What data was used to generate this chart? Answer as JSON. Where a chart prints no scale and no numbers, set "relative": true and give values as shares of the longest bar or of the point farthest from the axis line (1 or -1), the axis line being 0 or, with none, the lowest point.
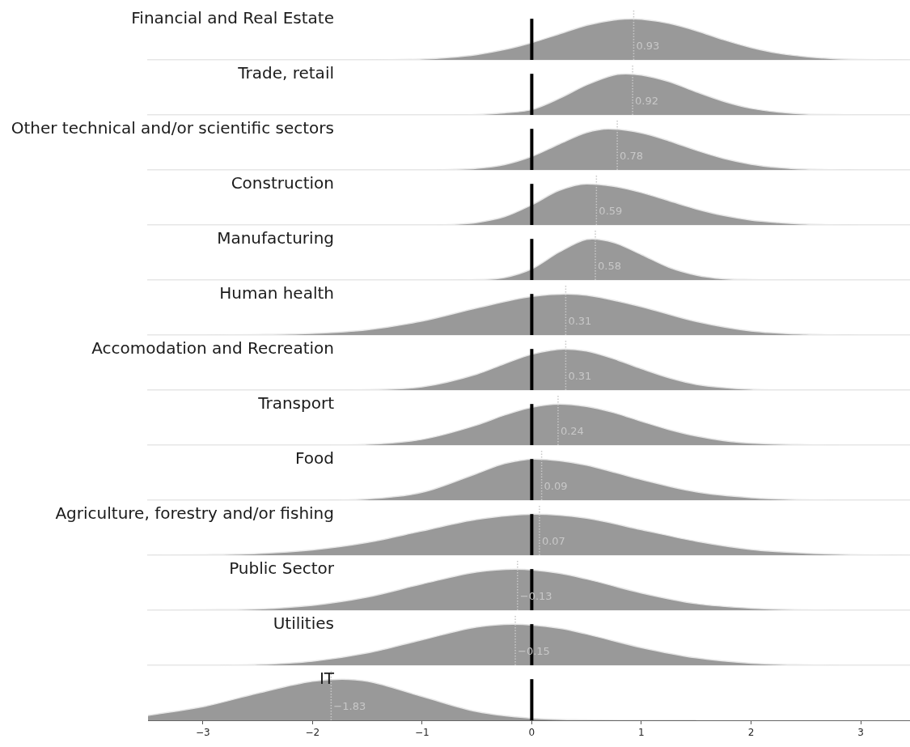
{
  "chart_data": [
    {
      "type": "area",
      "title": "Financial and Real Estate",
      "relative": true,
      "color": "#999999",
      "x": [
        -2.0,
        -1.5,
        -1.0,
        -0.75,
        -0.5,
        -0.25,
        0,
        0.25,
        0.5,
        0.75,
        0.92,
        1.0,
        1.25,
        1.5,
        1.75,
        2.0,
        2.25,
        2.5,
        2.75,
        3.0,
        3.45
      ],
      "values": [
        0,
        0,
        0.02,
        0.06,
        0.13,
        0.25,
        0.42,
        0.63,
        0.84,
        0.97,
        1,
        0.99,
        0.89,
        0.71,
        0.49,
        0.3,
        0.16,
        0.08,
        0.03,
        0.01,
        0
      ],
      "xlim": [
        -3.5,
        3.45
      ],
      "tick_labels": false,
      "ref_lines": [
        {
          "axis": "x",
          "value": 0,
          "color": "#000000"
        },
        {
          "axis": "x",
          "value": 0.93,
          "label": "0.93",
          "line_style": "dotted",
          "color": "#c8c8c8"
        }
      ]
    },
    {
      "type": "area",
      "title": "Trade, retail",
      "relative": true,
      "color": "#999999",
      "x": [
        -0.94,
        -0.5,
        -0.25,
        0,
        0.25,
        0.5,
        0.75,
        0.86,
        1.0,
        1.25,
        1.5,
        1.75,
        2.0,
        2.25,
        2.5,
        2.75,
        3.09
      ],
      "values": [
        0,
        0.01,
        0.05,
        0.13,
        0.4,
        0.73,
        0.97,
        1,
        0.97,
        0.81,
        0.56,
        0.33,
        0.16,
        0.07,
        0.02,
        0.01,
        0
      ],
      "xlim": [
        -3.5,
        3.45
      ],
      "tick_labels": false,
      "ref_lines": [
        {
          "axis": "x",
          "value": 0,
          "color": "#000000"
        },
        {
          "axis": "x",
          "value": 0.92,
          "label": "0.92",
          "line_style": "dotted",
          "color": "#c8c8c8"
        }
      ]
    },
    {
      "type": "area",
      "title": "Other technical and/or scientific sectors",
      "relative": true,
      "color": "#999999",
      "x": [
        -1.67,
        -1.0,
        -0.75,
        -0.5,
        -0.25,
        0,
        0.25,
        0.5,
        0.7,
        1.0,
        1.25,
        1.5,
        1.75,
        2.0,
        2.25,
        2.5,
        3.0,
        3.45
      ],
      "values": [
        0,
        0,
        0.01,
        0.04,
        0.13,
        0.33,
        0.63,
        0.91,
        1,
        0.9,
        0.71,
        0.48,
        0.28,
        0.14,
        0.06,
        0.02,
        0,
        0
      ],
      "xlim": [
        -3.5,
        3.45
      ],
      "tick_labels": false,
      "ref_lines": [
        {
          "axis": "x",
          "value": 0,
          "color": "#000000"
        },
        {
          "axis": "x",
          "value": 0.78,
          "label": "0.78",
          "line_style": "dotted",
          "color": "#c8c8c8"
        }
      ]
    },
    {
      "type": "area",
      "title": "Construction",
      "relative": true,
      "color": "#999999",
      "x": [
        -2.1,
        -1.0,
        -0.75,
        -0.5,
        -0.25,
        0,
        0.25,
        0.5,
        0.75,
        1.0,
        1.25,
        1.5,
        1.75,
        2.0,
        2.25,
        2.5,
        3.0,
        3.23
      ],
      "values": [
        0,
        0,
        0.01,
        0.06,
        0.2,
        0.49,
        0.84,
        1,
        0.94,
        0.79,
        0.59,
        0.39,
        0.23,
        0.12,
        0.06,
        0.02,
        0,
        0
      ],
      "xlim": [
        -3.5,
        3.45
      ],
      "tick_labels": false,
      "ref_lines": [
        {
          "axis": "x",
          "value": 0,
          "color": "#000000"
        },
        {
          "axis": "x",
          "value": 0.59,
          "label": "0.59",
          "line_style": "dotted",
          "color": "#c8c8c8"
        }
      ]
    },
    {
      "type": "area",
      "title": "Manufacturing",
      "relative": true,
      "color": "#999999",
      "x": [
        -0.96,
        -0.5,
        -0.25,
        0,
        0.25,
        0.5,
        0.55,
        0.75,
        1.0,
        1.25,
        1.5,
        1.75,
        2.0,
        2.41
      ],
      "values": [
        0,
        0.01,
        0.06,
        0.27,
        0.68,
        0.99,
        1,
        0.91,
        0.62,
        0.31,
        0.12,
        0.03,
        0.01,
        0
      ],
      "xlim": [
        -3.5,
        3.45
      ],
      "tick_labels": false,
      "ref_lines": [
        {
          "axis": "x",
          "value": 0,
          "color": "#000000"
        },
        {
          "axis": "x",
          "value": 0.58,
          "label": "0.58",
          "line_style": "dotted",
          "color": "#c8c8c8"
        }
      ]
    },
    {
      "type": "area",
      "title": "Human health",
      "relative": true,
      "color": "#999999",
      "x": [
        -3.2,
        -2.5,
        -2.0,
        -1.5,
        -1.0,
        -0.5,
        0,
        0.32,
        0.5,
        1.0,
        1.5,
        2.0,
        2.5,
        3.0,
        3.45
      ],
      "values": [
        0,
        0.01,
        0.04,
        0.13,
        0.34,
        0.66,
        0.94,
        1,
        0.97,
        0.69,
        0.33,
        0.1,
        0.02,
        0,
        0
      ],
      "xlim": [
        -3.5,
        3.45
      ],
      "tick_labels": false,
      "ref_lines": [
        {
          "axis": "x",
          "value": 0,
          "color": "#000000"
        },
        {
          "axis": "x",
          "value": 0.31,
          "label": "0.31",
          "line_style": "dotted",
          "color": "#c8c8c8"
        }
      ]
    },
    {
      "type": "area",
      "title": "Accomodation and Recreation",
      "relative": true,
      "color": "#999999",
      "x": [
        -2.6,
        -2.0,
        -1.5,
        -1.0,
        -0.5,
        -0.25,
        0,
        0.3,
        0.5,
        0.75,
        1.0,
        1.25,
        1.5,
        2.0,
        2.5,
        3.17
      ],
      "values": [
        0,
        0,
        0.01,
        0.08,
        0.39,
        0.64,
        0.87,
        1,
        0.95,
        0.76,
        0.52,
        0.3,
        0.14,
        0.02,
        0,
        0
      ],
      "xlim": [
        -3.5,
        3.45
      ],
      "tick_labels": false,
      "ref_lines": [
        {
          "axis": "x",
          "value": 0,
          "color": "#000000"
        },
        {
          "axis": "x",
          "value": 0.31,
          "label": "0.31",
          "line_style": "dotted",
          "color": "#c8c8c8"
        }
      ]
    },
    {
      "type": "area",
      "title": "Transport",
      "relative": true,
      "color": "#999999",
      "x": [
        -3.11,
        -2.0,
        -1.5,
        -1.0,
        -0.5,
        -0.25,
        0,
        0.25,
        0.5,
        0.75,
        1.0,
        1.25,
        1.5,
        1.75,
        2.0,
        2.5,
        3.0,
        3.45
      ],
      "values": [
        0,
        0,
        0.02,
        0.14,
        0.49,
        0.73,
        0.92,
        1,
        0.94,
        0.79,
        0.58,
        0.38,
        0.22,
        0.11,
        0.05,
        0.01,
        0,
        0
      ],
      "xlim": [
        -3.5,
        3.45
      ],
      "tick_labels": false,
      "ref_lines": [
        {
          "axis": "x",
          "value": 0,
          "color": "#000000"
        },
        {
          "axis": "x",
          "value": 0.24,
          "label": "0.24",
          "line_style": "dotted",
          "color": "#c8c8c8"
        }
      ]
    },
    {
      "type": "area",
      "title": "Food",
      "relative": true,
      "color": "#999999",
      "x": [
        -3.4,
        -2.5,
        -2.0,
        -1.5,
        -1.0,
        -0.5,
        -0.25,
        0.03,
        0.25,
        0.5,
        0.75,
        1.0,
        1.5,
        2.0,
        2.5,
        3.0,
        3.34
      ],
      "values": [
        0,
        0,
        0,
        0.03,
        0.19,
        0.65,
        0.89,
        1,
        0.96,
        0.85,
        0.68,
        0.5,
        0.2,
        0.06,
        0.01,
        0,
        0
      ],
      "xlim": [
        -3.5,
        3.45
      ],
      "tick_labels": false,
      "ref_lines": [
        {
          "axis": "x",
          "value": 0,
          "color": "#000000"
        },
        {
          "axis": "x",
          "value": 0.09,
          "label": "0.09",
          "line_style": "dotted",
          "color": "#c8c8c8"
        }
      ]
    },
    {
      "type": "area",
      "title": "Agriculture, forestry and/or fishing",
      "relative": true,
      "color": "#999999",
      "x": [
        -3.5,
        -3.0,
        -2.5,
        -2.0,
        -1.5,
        -1.0,
        -0.5,
        0.03,
        0.5,
        1.0,
        1.5,
        2.0,
        2.5,
        3.0,
        3.45
      ],
      "values": [
        0,
        0.01,
        0.04,
        0.13,
        0.31,
        0.59,
        0.87,
        1,
        0.9,
        0.62,
        0.34,
        0.14,
        0.05,
        0.01,
        0
      ],
      "xlim": [
        -3.5,
        3.45
      ],
      "tick_labels": false,
      "ref_lines": [
        {
          "axis": "x",
          "value": 0,
          "color": "#000000"
        },
        {
          "axis": "x",
          "value": 0.07,
          "label": "0.07",
          "line_style": "dotted",
          "color": "#c8c8c8"
        }
      ]
    },
    {
      "type": "area",
      "title": "Public Sector",
      "relative": true,
      "color": "#999999",
      "x": [
        -3.5,
        -3.0,
        -2.5,
        -2.0,
        -1.5,
        -1.0,
        -0.5,
        -0.15,
        0.25,
        0.5,
        1.0,
        1.5,
        2.0,
        2.5,
        3.0,
        3.45
      ],
      "values": [
        0,
        0.01,
        0.03,
        0.12,
        0.32,
        0.64,
        0.93,
        1,
        0.9,
        0.76,
        0.42,
        0.16,
        0.05,
        0.01,
        0,
        0
      ],
      "xlim": [
        -3.5,
        3.45
      ],
      "tick_labels": false,
      "ref_lines": [
        {
          "axis": "x",
          "value": 0,
          "color": "#000000"
        },
        {
          "axis": "x",
          "value": -0.13,
          "label": "−0.13",
          "line_style": "dotted",
          "color": "#c8c8c8"
        }
      ]
    },
    {
      "type": "area",
      "title": "Utilities",
      "relative": true,
      "color": "#999999",
      "x": [
        -3.5,
        -3.0,
        -2.5,
        -2.0,
        -1.5,
        -1.0,
        -0.5,
        -0.17,
        0.25,
        0.5,
        1.0,
        1.5,
        2.0,
        2.5,
        3.0,
        3.45
      ],
      "values": [
        0,
        0,
        0.02,
        0.1,
        0.3,
        0.62,
        0.93,
        1,
        0.9,
        0.76,
        0.43,
        0.18,
        0.05,
        0.01,
        0,
        0
      ],
      "xlim": [
        -3.5,
        3.45
      ],
      "tick_labels": false,
      "ref_lines": [
        {
          "axis": "x",
          "value": 0,
          "color": "#000000"
        },
        {
          "axis": "x",
          "value": -0.15,
          "label": "−0.15",
          "line_style": "dotted",
          "color": "#c8c8c8"
        }
      ]
    },
    {
      "type": "area",
      "title": "IT",
      "relative": true,
      "color": "#999999",
      "x": [
        -3.5,
        -3.0,
        -2.5,
        -2.0,
        -1.73,
        -1.5,
        -1.0,
        -0.5,
        0,
        0.5,
        1.0,
        1.5
      ],
      "values": [
        0.12,
        0.33,
        0.66,
        0.95,
        1,
        0.95,
        0.58,
        0.21,
        0.05,
        0.01,
        0,
        0
      ],
      "xlim": [
        -3.5,
        3.45
      ],
      "xticks": [
        {
          "value": -3,
          "label": "−3"
        },
        {
          "value": -2,
          "label": "−2"
        },
        {
          "value": -1,
          "label": "−1"
        },
        0,
        1,
        2,
        3
      ],
      "tick_labels": "x",
      "ref_lines": [
        {
          "axis": "x",
          "value": 0,
          "color": "#000000"
        },
        {
          "axis": "x",
          "value": -1.83,
          "label": "−1.83",
          "line_style": "dotted",
          "color": "#c8c8c8"
        }
      ]
    }
  ]
}
